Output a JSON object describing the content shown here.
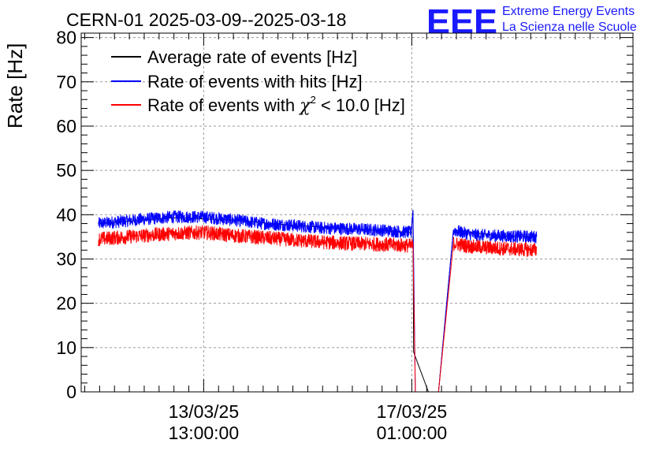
{
  "header": {
    "title": "CERN-01 2025-03-09--2025-03-18",
    "logo_text": "EEE",
    "logo_line1": "Extreme Energy Events",
    "logo_line2": "La Scienza nelle Scuole"
  },
  "colors": {
    "average": "#000000",
    "hits": "#0000ff",
    "chi2": "#ff0000",
    "logo": "#1a1aff",
    "grid": "#9a9a9a"
  },
  "chart_data": {
    "type": "line",
    "title": "CERN-01 2025-03-09--2025-03-18",
    "ylabel": "Rate [Hz]",
    "xlabel": "",
    "x_unit": "days",
    "xlim": [
      -2.06,
      7.22
    ],
    "ylim": [
      0,
      81
    ],
    "y_ticks": [
      0,
      10,
      20,
      30,
      40,
      50,
      60,
      70,
      80
    ],
    "x_tick_labels": [
      {
        "x": 0,
        "date": "13/03/25",
        "time": "13:00:00"
      },
      {
        "x": 3.5,
        "date": "17/03/25",
        "time": "01:00:00"
      }
    ],
    "grid": true,
    "legend_position": "top-left",
    "legend": [
      {
        "label": "Average rate of events [Hz]",
        "key": "average"
      },
      {
        "label": "Rate of events with hits [Hz]",
        "key": "hits"
      },
      {
        "label_pre": "Rate of events with ",
        "label_chi": "χ",
        "label_sup": "2",
        "label_post": " < 10.0 [Hz]",
        "key": "chi2"
      }
    ],
    "series": [
      {
        "name": "Average rate of events [Hz]",
        "key": "average",
        "points": [
          [
            -1.77,
            38.0
          ],
          [
            -0.5,
            39.3
          ],
          [
            0.5,
            38.8
          ],
          [
            1.5,
            37.6
          ],
          [
            2.5,
            36.8
          ],
          [
            3.49,
            36.0
          ],
          [
            3.52,
            41.0
          ],
          [
            3.53,
            9.0
          ],
          [
            3.78,
            0.0
          ],
          [
            3.95,
            0.0
          ],
          [
            4.2,
            36.5
          ],
          [
            5.0,
            35.2
          ],
          [
            5.6,
            35.0
          ]
        ]
      },
      {
        "name": "Rate of events with hits [Hz]",
        "key": "hits",
        "points": [
          [
            -1.77,
            38.0
          ],
          [
            -1.0,
            39.0
          ],
          [
            -0.5,
            39.5
          ],
          [
            0.0,
            39.5
          ],
          [
            0.5,
            38.8
          ],
          [
            1.0,
            38.0
          ],
          [
            1.5,
            37.6
          ],
          [
            2.0,
            37.0
          ],
          [
            2.5,
            36.8
          ],
          [
            3.0,
            36.5
          ],
          [
            3.49,
            36.0
          ],
          [
            3.52,
            41.0
          ],
          [
            3.56,
            0.0
          ],
          [
            3.95,
            0.0
          ],
          [
            4.2,
            36.5
          ],
          [
            4.5,
            35.5
          ],
          [
            5.0,
            35.2
          ],
          [
            5.6,
            35.0
          ]
        ]
      },
      {
        "name": "Rate of events with χ² < 10.0 [Hz]",
        "key": "chi2",
        "points": [
          [
            -1.77,
            34.5
          ],
          [
            -1.0,
            35.3
          ],
          [
            -0.5,
            35.8
          ],
          [
            0.0,
            36.0
          ],
          [
            0.5,
            35.3
          ],
          [
            1.0,
            34.8
          ],
          [
            1.5,
            34.3
          ],
          [
            2.0,
            33.8
          ],
          [
            2.5,
            33.5
          ],
          [
            3.0,
            33.3
          ],
          [
            3.49,
            33.0
          ],
          [
            3.52,
            33.0
          ],
          [
            3.56,
            0.0
          ],
          [
            3.95,
            0.0
          ],
          [
            4.2,
            33.5
          ],
          [
            4.5,
            32.8
          ],
          [
            5.0,
            32.4
          ],
          [
            5.6,
            32.0
          ]
        ]
      }
    ]
  }
}
